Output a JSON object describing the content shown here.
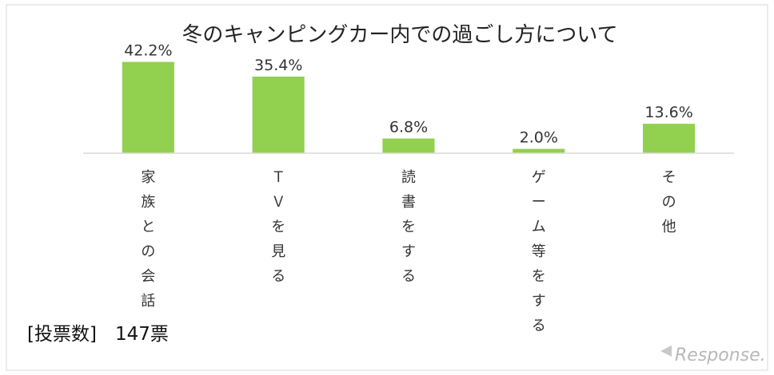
{
  "chart_data": {
    "type": "bar",
    "title": "冬のキャンピングカー内での過ごし方について",
    "categories": [
      "家族との会話",
      "ＴＶを見る",
      "読書をする",
      "ゲーム等をする",
      "その他"
    ],
    "values": [
      42.2,
      35.4,
      6.8,
      2.0,
      13.6
    ],
    "value_labels": [
      "42.2%",
      "35.4%",
      "6.8%",
      "2.0%",
      "13.6%"
    ],
    "unit": "%",
    "ylim": [
      0,
      45
    ],
    "bar_color": "#92d050",
    "grid": false,
    "category_label_orientation": "vertical"
  },
  "note": "[投票数]　147票",
  "watermark": "Response."
}
